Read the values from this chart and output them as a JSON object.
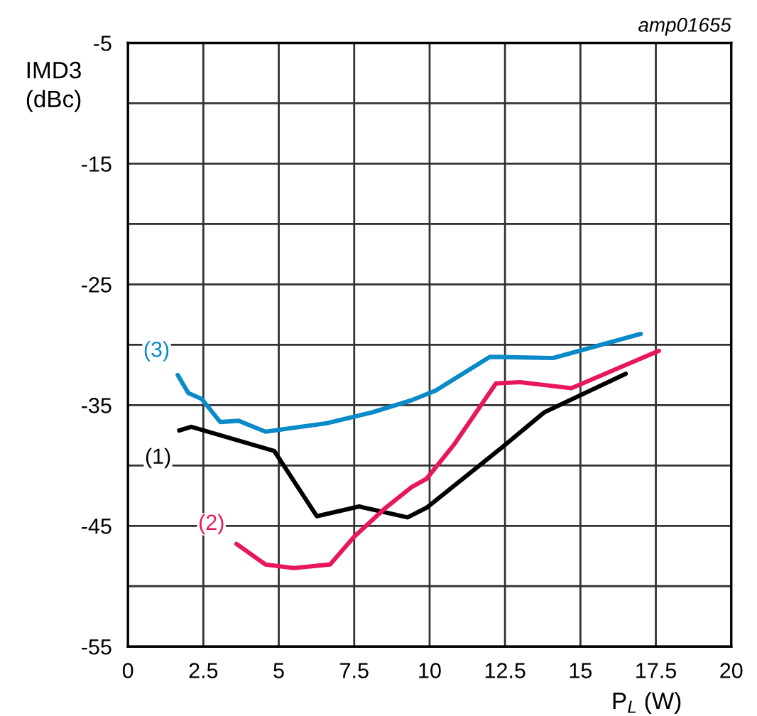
{
  "chart_data": {
    "type": "line",
    "xlabel": "P$_{L}$ (W)",
    "ylabel": "IMD3\n(dBc)",
    "annotations": [
      "amp01655"
    ],
    "xlim": [
      0,
      20
    ],
    "xticks": [
      0,
      2.5,
      5,
      7.5,
      10,
      12.5,
      15,
      17.5,
      20
    ],
    "ylim": [
      -55,
      -5
    ],
    "yticks": [
      -55,
      {
        "value": -50,
        "label": null
      },
      -45,
      {
        "value": -40,
        "label": null
      },
      -35,
      {
        "value": -30,
        "label": null
      },
      -25,
      {
        "value": -20,
        "label": null
      },
      -15,
      {
        "value": -10,
        "label": null
      },
      -5
    ],
    "grid": true,
    "legend": false,
    "marker": "none",
    "line_style": "solid",
    "series": [
      {
        "name": "(1)",
        "color": "#000000",
        "x": [
          1.7,
          2.1,
          4.85,
          6.26,
          7.67,
          9.27,
          9.9,
          12.4,
          13.8,
          16.5
        ],
        "values": [
          -37.1,
          -36.8,
          -38.8,
          -44.2,
          -43.4,
          -44.3,
          -43.5,
          -38.5,
          -35.6,
          -32.4
        ]
      },
      {
        "name": "(2)",
        "color": "#e8175d",
        "x": [
          3.6,
          4.56,
          5.5,
          6.7,
          7.5,
          8.5,
          9.4,
          9.9,
          10.8,
          12.2,
          13.0,
          14.7,
          17.6
        ],
        "values": [
          -46.5,
          -48.2,
          -48.5,
          -48.2,
          -45.9,
          -43.6,
          -41.8,
          -41.1,
          -38.3,
          -33.2,
          -33.1,
          -33.6,
          -30.5
        ]
      },
      {
        "name": "(3)",
        "color": "#0a8ac8",
        "x": [
          1.65,
          2.0,
          2.45,
          3.06,
          3.67,
          4.56,
          6.6,
          8.1,
          9.4,
          10.2,
          12.0,
          14.1,
          17.0
        ],
        "values": [
          -32.5,
          -34.0,
          -34.5,
          -36.4,
          -36.3,
          -37.2,
          -36.5,
          -35.6,
          -34.6,
          -33.8,
          -31.0,
          -31.1,
          -29.1
        ]
      }
    ]
  }
}
